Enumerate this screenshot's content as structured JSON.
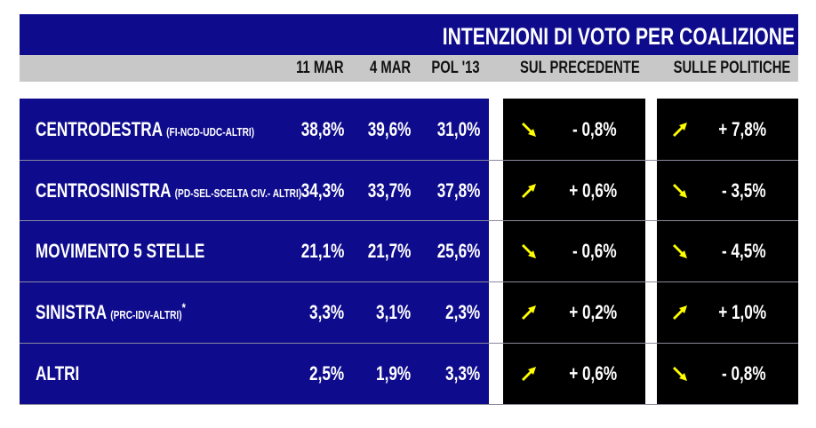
{
  "title": "INTENZIONI DI VOTO PER COALIZIONE",
  "columns": [
    "11 MAR",
    "4 MAR",
    "POL '13",
    "SUL PRECEDENTE",
    "SULLE POLITICHE"
  ],
  "colors": {
    "navy": "#0e0b8c",
    "gray": "#c8c8c8",
    "arrow": "#ffff00",
    "panel": "#000000"
  },
  "rows": [
    {
      "name": "CENTRODESTRA",
      "detail": "(FI-NCD-UDC-ALTRI)",
      "mark": "",
      "v11mar": "38,8%",
      "v4mar": "39,6%",
      "pol13": "31,0%",
      "prec_dir": "down",
      "prec": "- 0,8%",
      "pol_dir": "up",
      "pol": "+ 7,8%"
    },
    {
      "name": "CENTROSINISTRA",
      "detail": "(PD-SEL-SCELTA CIV.- ALTRI)",
      "mark": "",
      "v11mar": "34,3%",
      "v4mar": "33,7%",
      "pol13": "37,8%",
      "prec_dir": "up",
      "prec": "+ 0,6%",
      "pol_dir": "down",
      "pol": "- 3,5%"
    },
    {
      "name": "MOVIMENTO 5 STELLE",
      "detail": "",
      "mark": "",
      "v11mar": "21,1%",
      "v4mar": "21,7%",
      "pol13": "25,6%",
      "prec_dir": "down",
      "prec": "- 0,6%",
      "pol_dir": "down",
      "pol": "- 4,5%"
    },
    {
      "name": "SINISTRA",
      "detail": "(PRC-IDV-ALTRI)",
      "mark": "*",
      "v11mar": "3,3%",
      "v4mar": "3,1%",
      "pol13": "2,3%",
      "prec_dir": "up",
      "prec": "+ 0,2%",
      "pol_dir": "up",
      "pol": "+ 1,0%"
    },
    {
      "name": "ALTRI",
      "detail": "",
      "mark": "",
      "v11mar": "2,5%",
      "v4mar": "1,9%",
      "pol13": "3,3%",
      "prec_dir": "up",
      "prec": "+ 0,6%",
      "pol_dir": "down",
      "pol": "- 0,8%"
    }
  ],
  "chart_data": {
    "type": "table",
    "title": "INTENZIONI DI VOTO PER COALIZIONE",
    "columns": [
      "11 MAR",
      "4 MAR",
      "POL '13",
      "SUL PRECEDENTE",
      "SULLE POLITICHE"
    ],
    "categories": [
      "CENTRODESTRA",
      "CENTROSINISTRA",
      "MOVIMENTO 5 STELLE",
      "SINISTRA",
      "ALTRI"
    ],
    "series": [
      {
        "name": "11 MAR",
        "values": [
          38.8,
          34.3,
          21.1,
          3.3,
          2.5
        ]
      },
      {
        "name": "4 MAR",
        "values": [
          39.6,
          33.7,
          21.7,
          3.1,
          1.9
        ]
      },
      {
        "name": "POL '13",
        "values": [
          31.0,
          37.8,
          25.6,
          2.3,
          3.3
        ]
      },
      {
        "name": "SUL PRECEDENTE",
        "values": [
          -0.8,
          0.6,
          -0.6,
          0.2,
          0.6
        ]
      },
      {
        "name": "SULLE POLITICHE",
        "values": [
          7.8,
          -3.5,
          -4.5,
          1.0,
          -0.8
        ]
      }
    ]
  }
}
